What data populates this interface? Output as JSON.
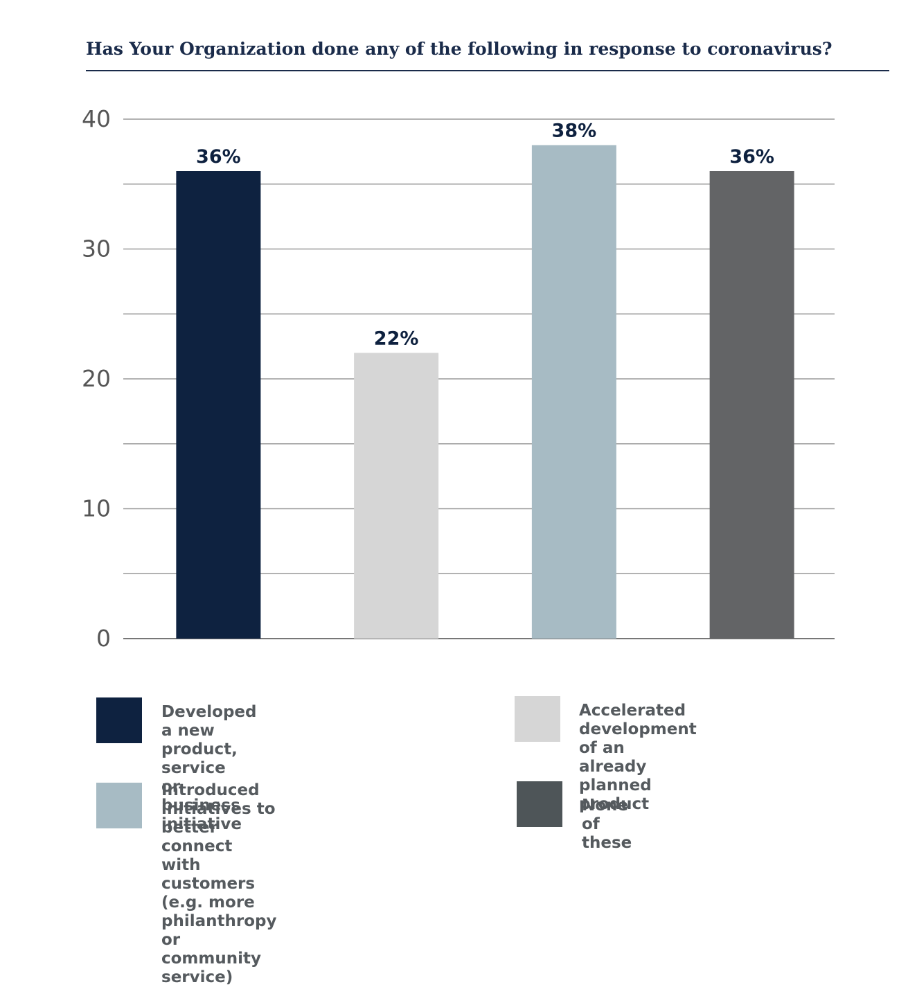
{
  "chart_data": {
    "type": "bar",
    "title": "Has Your Organization done any of the following in response to coronavirus?",
    "xlabel": "",
    "ylabel": "",
    "ylim": [
      0,
      40
    ],
    "yticks": [
      0,
      10,
      20,
      30,
      40
    ],
    "grid": true,
    "categories": [
      "Developed a new product, service or business initiative",
      "Accelerated development of an already planned product",
      "Introduced initiatives to better connect with customers (e.g. more philanthropy or community service)",
      "None of these"
    ],
    "values": [
      36,
      22,
      38,
      36
    ],
    "data_labels": [
      "36%",
      "22%",
      "38%",
      "36%"
    ],
    "colors": [
      "#0e2240",
      "#d6d6d6",
      "#a7bbc4",
      "#636466"
    ],
    "legend": {
      "placement": "bottom",
      "items": [
        {
          "label": "Developed a new product, service\nor business initiative",
          "color": "#0e2240"
        },
        {
          "label": "Accelerated development of an\nalready planned product",
          "color": "#d6d6d6"
        },
        {
          "label": "Introduced initiatives to better\nconnect with customers (e.g. more\nphilanthropy or community service)",
          "color": "#a7bbc4"
        },
        {
          "label": "None of these",
          "color": "#4e5558"
        }
      ]
    }
  }
}
